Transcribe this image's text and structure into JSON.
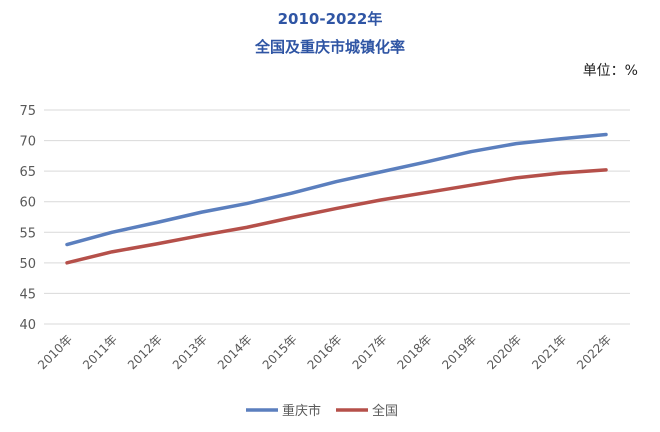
{
  "chart_data": {
    "type": "line",
    "title": "2010-2022年",
    "subtitle": "全国及重庆市城镇化率",
    "unit_label": "单位：%",
    "categories": [
      "2010年",
      "2011年",
      "2012年",
      "2013年",
      "2014年",
      "2015年",
      "2016年",
      "2017年",
      "2018年",
      "2019年",
      "2020年",
      "2021年",
      "2022年"
    ],
    "ylim": [
      40,
      75
    ],
    "yticks": [
      40,
      45,
      50,
      55,
      60,
      65,
      70,
      75
    ],
    "grid": true,
    "legend_position": "bottom",
    "series": [
      {
        "name": "重庆市",
        "color": "#5b7fbe",
        "values": [
          53.0,
          55.0,
          56.6,
          58.3,
          59.7,
          61.4,
          63.3,
          64.9,
          66.5,
          68.2,
          69.5,
          70.3,
          71.0
        ]
      },
      {
        "name": "全国",
        "color": "#b5504a",
        "values": [
          50.0,
          51.8,
          53.1,
          54.5,
          55.8,
          57.4,
          58.9,
          60.3,
          61.5,
          62.7,
          63.9,
          64.7,
          65.2
        ]
      }
    ]
  }
}
